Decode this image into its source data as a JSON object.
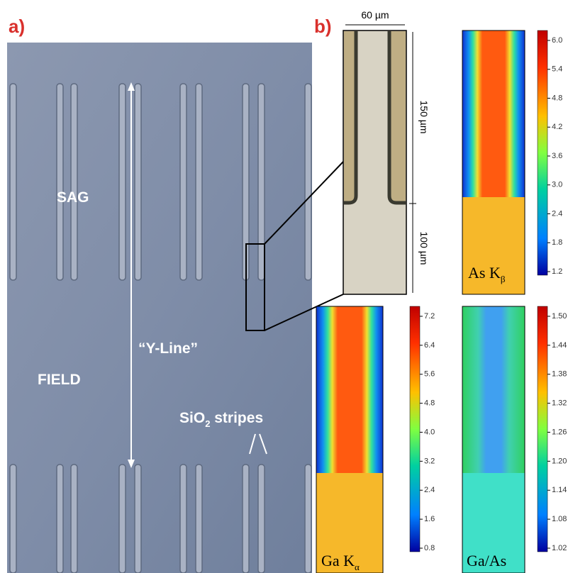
{
  "panel_a": {
    "label": "a)",
    "sag_label": "SAG",
    "field_label": "FIELD",
    "yline_label": "“Y-Line”",
    "stripes_label": {
      "text": "SiO",
      "sub": "2",
      "rest": " stripes"
    }
  },
  "panel_b": {
    "label": "b)",
    "width_label": "60 µm",
    "height_top_label": "150 µm",
    "height_bottom_label": "100 µm",
    "maps": [
      {
        "label": {
          "text": "As K",
          "sub": "β"
        },
        "colorbar": [
          "6.0",
          "5.4",
          "4.8",
          "4.2",
          "3.6",
          "3.0",
          "2.4",
          "1.8",
          "1.2"
        ]
      },
      {
        "label": {
          "text": "Ga K",
          "sub": "α"
        },
        "colorbar": [
          "7.2",
          "6.4",
          "5.6",
          "4.8",
          "4.0",
          "3.2",
          "2.4",
          "1.6",
          "0.8"
        ]
      },
      {
        "label": {
          "text": "Ga/As"
        },
        "colorbar": [
          "1.50",
          "1.44",
          "1.38",
          "1.32",
          "1.26",
          "1.20",
          "1.14",
          "1.08",
          "1.02"
        ]
      }
    ]
  }
}
